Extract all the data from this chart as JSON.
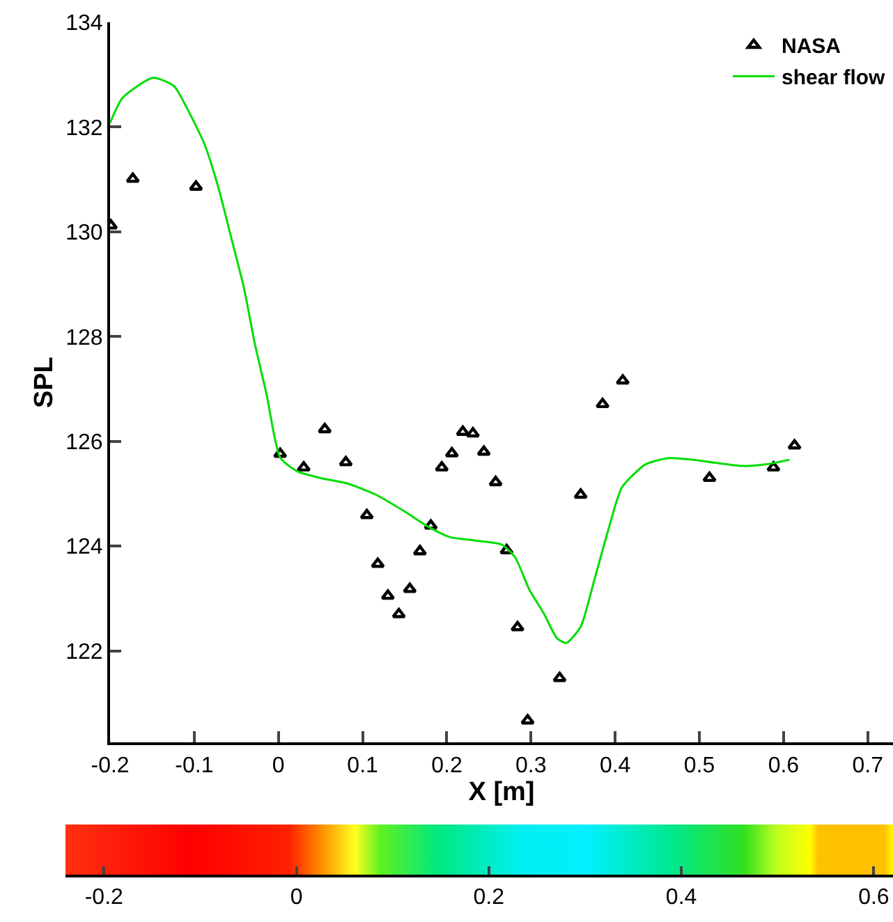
{
  "chart_data": {
    "type": "scatter",
    "xlabel": "X [m]",
    "ylabel": "SPL",
    "xlim": [
      -0.2,
      0.73
    ],
    "ylim": [
      120.25,
      134
    ],
    "xticks": [
      -0.2,
      -0.1,
      0,
      0.1,
      0.2,
      0.3,
      0.4,
      0.5,
      0.6,
      0.7
    ],
    "yticks": [
      122,
      124,
      126,
      128,
      130,
      132,
      134
    ],
    "x2lim": [
      -0.24,
      0.62
    ],
    "x2ticks": [
      -0.2,
      0,
      0.2,
      0.4,
      0.6
    ],
    "grid": false,
    "legend": "top right",
    "series": [
      {
        "name": "NASA",
        "type": "scatter",
        "marker": "triangle",
        "color": "#000000",
        "x": [
          -0.199,
          -0.173,
          -0.098,
          0.002,
          0.03,
          0.055,
          0.08,
          0.105,
          0.118,
          0.13,
          0.143,
          0.156,
          0.168,
          0.181,
          0.194,
          0.206,
          0.219,
          0.231,
          0.244,
          0.258,
          0.271,
          0.284,
          0.296,
          0.334,
          0.359,
          0.385,
          0.409,
          0.512,
          0.588,
          0.613
        ],
        "values": [
          130.12,
          131.01,
          130.86,
          125.76,
          125.5,
          126.23,
          125.6,
          124.59,
          123.66,
          123.05,
          122.7,
          123.18,
          123.9,
          124.39,
          125.5,
          125.77,
          126.18,
          126.15,
          125.8,
          125.22,
          123.92,
          122.45,
          120.67,
          121.48,
          124.98,
          126.71,
          127.16,
          125.3,
          125.5,
          125.92
        ]
      },
      {
        "name": "shear flow",
        "type": "line",
        "marker": "none",
        "line_style": "solid",
        "color": "#00dd00",
        "x": [
          -0.2,
          -0.185,
          -0.149,
          -0.124,
          -0.108,
          -0.088,
          -0.072,
          -0.055,
          -0.041,
          -0.028,
          -0.014,
          0.002,
          0.022,
          0.05,
          0.083,
          0.116,
          0.149,
          0.179,
          0.204,
          0.232,
          0.265,
          0.281,
          0.298,
          0.315,
          0.331,
          0.342,
          0.359,
          0.375,
          0.392,
          0.408,
          0.436,
          0.464,
          0.491,
          0.519,
          0.552,
          0.579,
          0.607
        ],
        "values": [
          132.08,
          132.56,
          132.94,
          132.78,
          132.34,
          131.68,
          130.88,
          129.82,
          128.93,
          127.86,
          126.89,
          125.69,
          125.43,
          125.3,
          125.19,
          124.98,
          124.67,
          124.36,
          124.17,
          124.11,
          124.03,
          123.79,
          123.17,
          122.72,
          122.24,
          122.15,
          122.46,
          123.34,
          124.32,
          125.12,
          125.56,
          125.68,
          125.65,
          125.59,
          125.53,
          125.56,
          125.65
        ]
      }
    ]
  }
}
